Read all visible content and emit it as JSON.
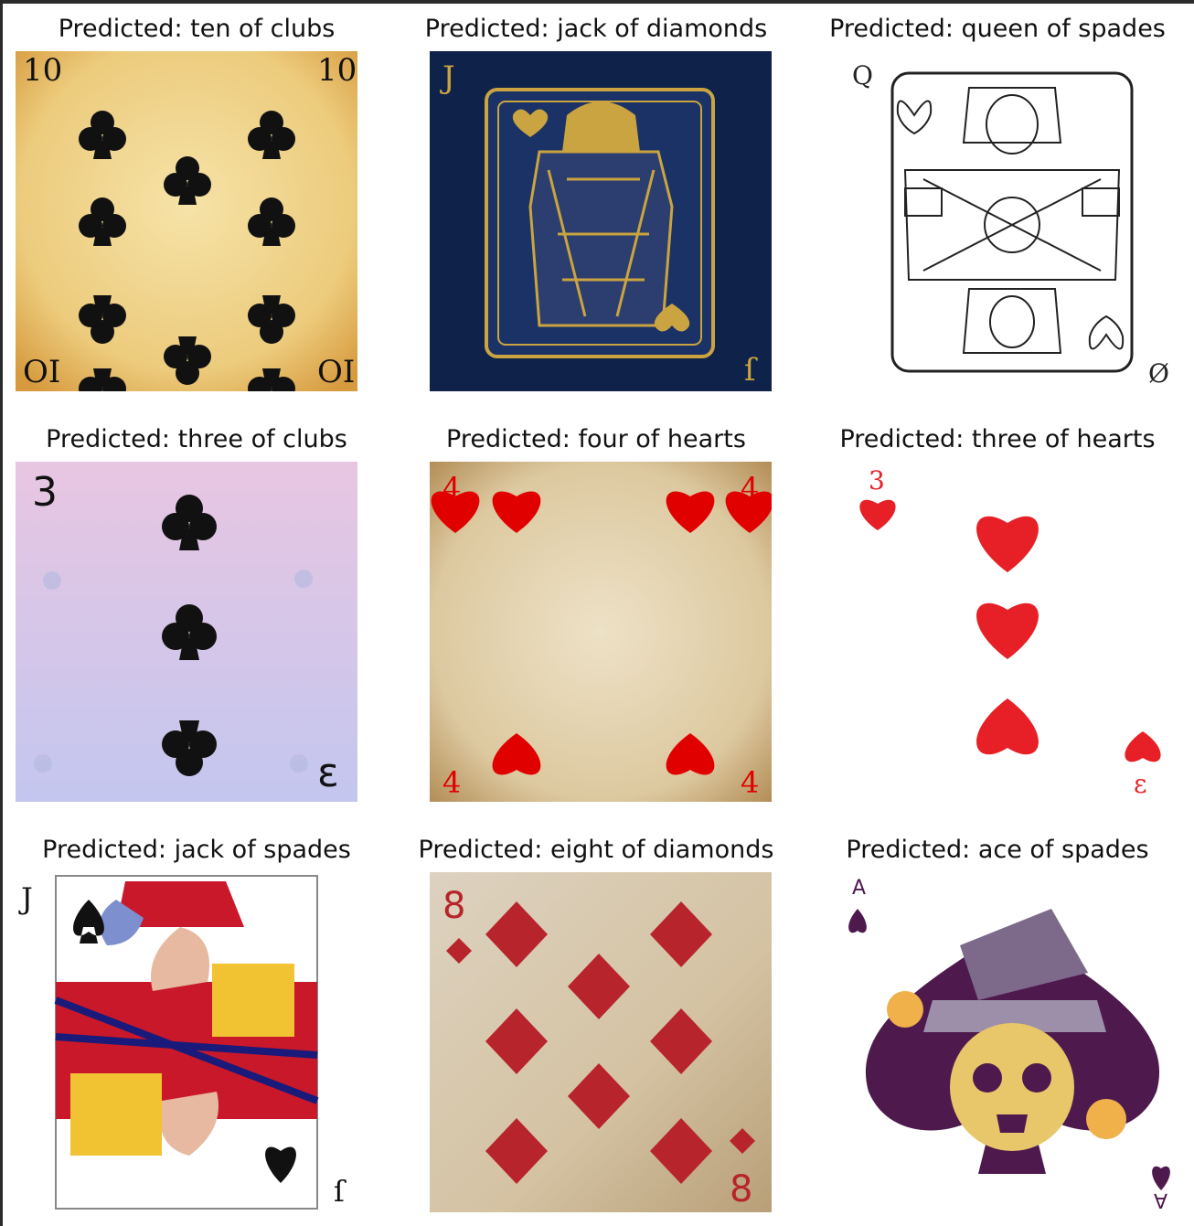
{
  "figure": {
    "panels": [
      {
        "title": "Predicted: ten of clubs",
        "card": "ten-of-clubs"
      },
      {
        "title": "Predicted: jack of diamonds",
        "card": "jack-of-hearts-gold"
      },
      {
        "title": "Predicted: queen of spades",
        "card": "queen-of-spades-outline"
      },
      {
        "title": "Predicted: three of clubs",
        "card": "three-of-clubs"
      },
      {
        "title": "Predicted: four of hearts",
        "card": "four-of-hearts"
      },
      {
        "title": "Predicted: three of hearts",
        "card": "three-of-hearts"
      },
      {
        "title": "Predicted: jack of spades",
        "card": "jack-of-spades"
      },
      {
        "title": "Predicted: eight of diamonds",
        "card": "eight-of-diamonds"
      },
      {
        "title": "Predicted: ace of spades",
        "card": "ace-of-spades-halloween"
      }
    ],
    "colors": {
      "clubs_black": "#111111",
      "heart_red": "#e01e24",
      "diamond_red": "#b8242c",
      "gold": "#c9a441",
      "navy": "#0f2249",
      "parchment": "#efcf86",
      "lavender_top": "#e8c6e2",
      "lavender_bottom": "#c3c6ef",
      "purple": "#4e1a4e"
    }
  }
}
